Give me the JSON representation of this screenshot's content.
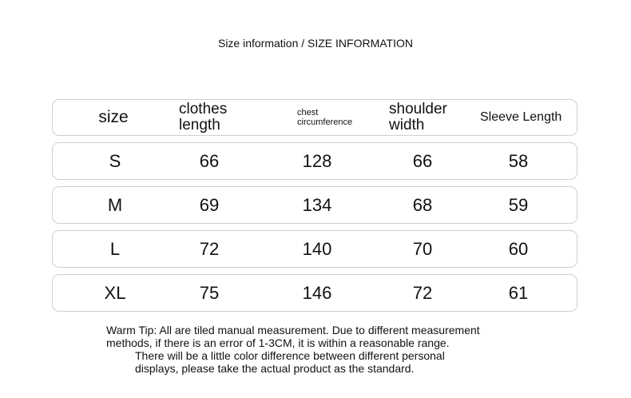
{
  "title": "Size information / SIZE INFORMATION",
  "headers": [
    "size",
    "clothes length",
    "chest circumference",
    "shoulder width",
    "Sleeve Length"
  ],
  "header_lines": {
    "clothes": [
      "clothes",
      "length"
    ],
    "chest": [
      "chest",
      "circumference"
    ],
    "shoulder": [
      "shoulder",
      "width"
    ]
  },
  "rows": [
    [
      "S",
      "66",
      "128",
      "66",
      "58"
    ],
    [
      "M",
      "69",
      "134",
      "68",
      "59"
    ],
    [
      "L",
      "72",
      "140",
      "70",
      "60"
    ],
    [
      "XL",
      "75",
      "146",
      "72",
      "61"
    ]
  ],
  "tip": [
    "Warm Tip: All are tiled manual measurement. Due to different measurement",
    "methods, if there is an error of 1-3CM, it is within a reasonable range.",
    "There will be a little color difference between different personal",
    "displays, please take the actual product as the standard."
  ]
}
